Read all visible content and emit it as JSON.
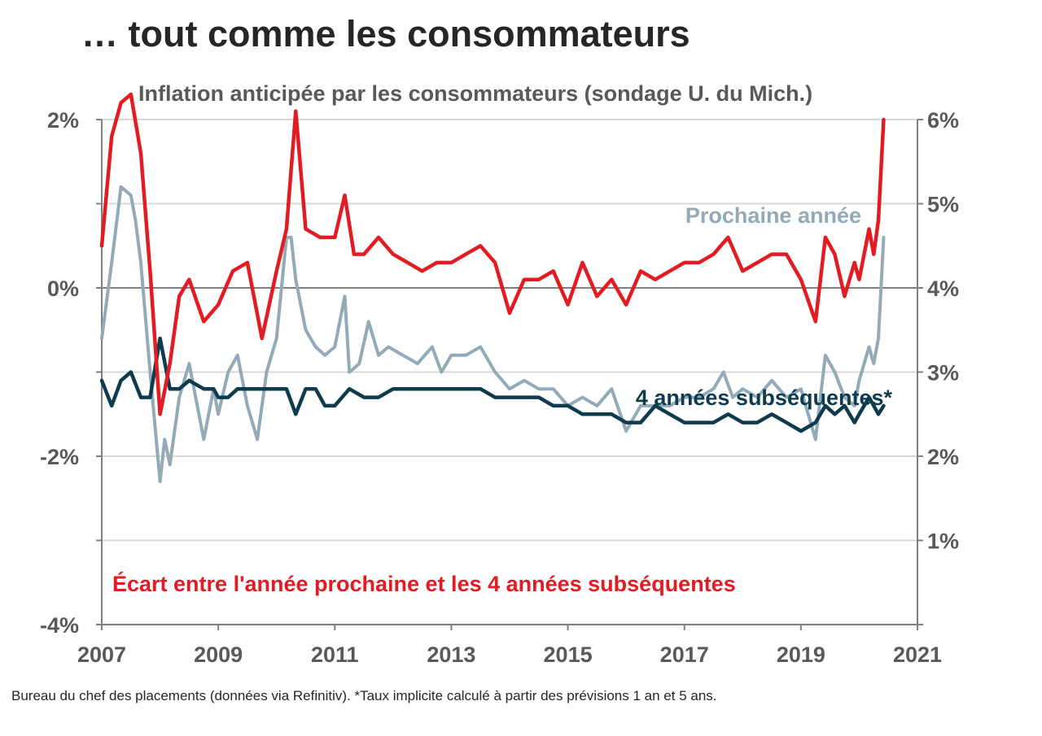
{
  "page": {
    "title": "… tout comme les consommateurs",
    "source_note": "Bureau du chef des placements (données via Refinitiv). *Taux implicite calculé à partir des prévisions 1 an et 5 ans."
  },
  "chart_data": {
    "type": "line",
    "title": "Inflation anticipée par les consommateurs (sondage U. du Mich.)",
    "x_ticks": [
      "2007",
      "2009",
      "2011",
      "2013",
      "2015",
      "2017",
      "2019",
      "2021"
    ],
    "xlim": [
      2007,
      2021
    ],
    "right_axis": {
      "ylim": [
        0,
        6
      ],
      "ticks": [
        1,
        2,
        3,
        4,
        5,
        6
      ],
      "labels": [
        "1%",
        "2%",
        "3%",
        "4%",
        "5%",
        "6%"
      ]
    },
    "left_axis": {
      "ylim": [
        -4,
        2
      ],
      "ticks": [
        -4,
        -2,
        0,
        2
      ],
      "labels": [
        "-4%",
        "-2%",
        "0%",
        "2%"
      ]
    },
    "series": [
      {
        "name": "Prochaine année",
        "axis": "right",
        "color": "#93aab9",
        "x": [
          2007.0,
          2007.17,
          2007.33,
          2007.5,
          2007.58,
          2007.67,
          2007.83,
          2008.0,
          2008.08,
          2008.17,
          2008.33,
          2008.5,
          2008.75,
          2008.92,
          2009.0,
          2009.17,
          2009.33,
          2009.5,
          2009.67,
          2009.83,
          2010.0,
          2010.17,
          2010.25,
          2010.33,
          2010.5,
          2010.67,
          2010.83,
          2011.0,
          2011.17,
          2011.25,
          2011.42,
          2011.58,
          2011.75,
          2011.92,
          2012.17,
          2012.42,
          2012.67,
          2012.83,
          2013.0,
          2013.25,
          2013.5,
          2013.75,
          2014.0,
          2014.25,
          2014.5,
          2014.75,
          2015.0,
          2015.25,
          2015.5,
          2015.75,
          2016.0,
          2016.25,
          2016.5,
          2016.75,
          2017.0,
          2017.25,
          2017.5,
          2017.67,
          2017.83,
          2018.0,
          2018.25,
          2018.5,
          2018.75,
          2019.0,
          2019.25,
          2019.42,
          2019.58,
          2019.75,
          2019.92,
          2020.0,
          2020.17,
          2020.25,
          2020.33,
          2020.42
        ],
        "values": [
          3.4,
          4.3,
          5.2,
          5.1,
          4.8,
          4.3,
          3.0,
          1.7,
          2.2,
          1.9,
          2.7,
          3.1,
          2.2,
          2.8,
          2.5,
          3.0,
          3.2,
          2.6,
          2.2,
          3.0,
          3.4,
          4.6,
          4.6,
          4.1,
          3.5,
          3.3,
          3.2,
          3.3,
          3.9,
          3.0,
          3.1,
          3.6,
          3.2,
          3.3,
          3.2,
          3.1,
          3.3,
          3.0,
          3.2,
          3.2,
          3.3,
          3.0,
          2.8,
          2.9,
          2.8,
          2.8,
          2.6,
          2.7,
          2.6,
          2.8,
          2.3,
          2.6,
          2.6,
          2.6,
          2.7,
          2.7,
          2.8,
          3.0,
          2.7,
          2.8,
          2.7,
          2.9,
          2.7,
          2.8,
          2.2,
          3.2,
          3.0,
          2.7,
          2.6,
          2.9,
          3.3,
          3.1,
          3.4,
          4.6
        ]
      },
      {
        "name": "4 années subséquentes*",
        "axis": "right",
        "color": "#0e3b4d",
        "x": [
          2007.0,
          2007.17,
          2007.33,
          2007.5,
          2007.67,
          2007.83,
          2008.0,
          2008.17,
          2008.33,
          2008.5,
          2008.75,
          2008.92,
          2009.0,
          2009.17,
          2009.33,
          2009.5,
          2009.67,
          2009.83,
          2010.0,
          2010.17,
          2010.33,
          2010.5,
          2010.67,
          2010.83,
          2011.0,
          2011.25,
          2011.5,
          2011.75,
          2012.0,
          2012.25,
          2012.5,
          2012.75,
          2013.0,
          2013.25,
          2013.5,
          2013.75,
          2014.0,
          2014.25,
          2014.5,
          2014.75,
          2015.0,
          2015.25,
          2015.5,
          2015.75,
          2016.0,
          2016.25,
          2016.5,
          2016.75,
          2017.0,
          2017.25,
          2017.5,
          2017.75,
          2018.0,
          2018.25,
          2018.5,
          2018.75,
          2019.0,
          2019.25,
          2019.42,
          2019.58,
          2019.75,
          2019.92,
          2020.0,
          2020.17,
          2020.25,
          2020.33,
          2020.42
        ],
        "values": [
          2.9,
          2.6,
          2.9,
          3.0,
          2.7,
          2.7,
          3.4,
          2.8,
          2.8,
          2.9,
          2.8,
          2.8,
          2.7,
          2.7,
          2.8,
          2.8,
          2.8,
          2.8,
          2.8,
          2.8,
          2.5,
          2.8,
          2.8,
          2.6,
          2.6,
          2.8,
          2.7,
          2.7,
          2.8,
          2.8,
          2.8,
          2.8,
          2.8,
          2.8,
          2.8,
          2.7,
          2.7,
          2.7,
          2.7,
          2.6,
          2.6,
          2.5,
          2.5,
          2.5,
          2.4,
          2.4,
          2.6,
          2.5,
          2.4,
          2.4,
          2.4,
          2.5,
          2.4,
          2.4,
          2.5,
          2.4,
          2.3,
          2.4,
          2.6,
          2.5,
          2.6,
          2.4,
          2.5,
          2.7,
          2.6,
          2.5,
          2.6
        ]
      },
      {
        "name": "Écart entre l'année prochaine et les 4 années subséquentes",
        "axis": "left",
        "color": "#e31b23",
        "x": [
          2007.0,
          2007.17,
          2007.33,
          2007.5,
          2007.67,
          2007.83,
          2008.0,
          2008.17,
          2008.33,
          2008.5,
          2008.75,
          2009.0,
          2009.25,
          2009.5,
          2009.75,
          2010.0,
          2010.17,
          2010.33,
          2010.5,
          2010.75,
          2011.0,
          2011.17,
          2011.33,
          2011.5,
          2011.75,
          2012.0,
          2012.25,
          2012.5,
          2012.75,
          2013.0,
          2013.25,
          2013.5,
          2013.75,
          2014.0,
          2014.25,
          2014.5,
          2014.75,
          2015.0,
          2015.25,
          2015.5,
          2015.75,
          2016.0,
          2016.25,
          2016.5,
          2016.75,
          2017.0,
          2017.25,
          2017.5,
          2017.75,
          2018.0,
          2018.25,
          2018.5,
          2018.75,
          2019.0,
          2019.25,
          2019.42,
          2019.58,
          2019.75,
          2019.92,
          2020.0,
          2020.17,
          2020.25,
          2020.33,
          2020.42
        ],
        "values": [
          0.5,
          1.8,
          2.2,
          2.3,
          1.6,
          0.2,
          -1.5,
          -0.9,
          -0.1,
          0.1,
          -0.4,
          -0.2,
          0.2,
          0.3,
          -0.6,
          0.2,
          0.7,
          2.1,
          0.7,
          0.6,
          0.6,
          1.1,
          0.4,
          0.4,
          0.6,
          0.4,
          0.3,
          0.2,
          0.3,
          0.3,
          0.4,
          0.5,
          0.3,
          -0.3,
          0.1,
          0.1,
          0.2,
          -0.2,
          0.3,
          -0.1,
          0.1,
          -0.2,
          0.2,
          0.1,
          0.2,
          0.3,
          0.3,
          0.4,
          0.6,
          0.2,
          0.3,
          0.4,
          0.4,
          0.1,
          -0.4,
          0.6,
          0.4,
          -0.1,
          0.3,
          0.1,
          0.7,
          0.4,
          0.8,
          2.0
        ]
      }
    ],
    "annotations": [
      {
        "text": "Prochaine année",
        "color": "#93aab9"
      },
      {
        "text": "4 années subséquentes*",
        "color": "#0e3b4d"
      },
      {
        "text": "Écart entre l'année prochaine et les 4 années subséquentes",
        "color": "#e31b23"
      }
    ]
  }
}
